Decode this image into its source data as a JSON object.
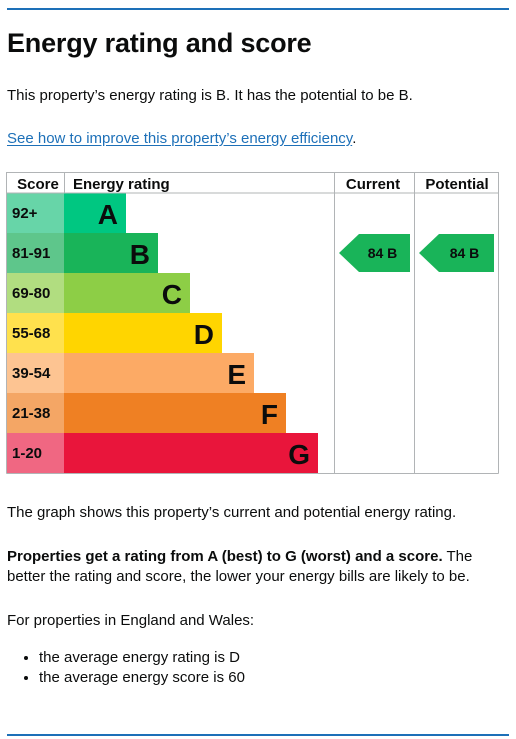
{
  "page": {
    "title": "Energy rating and score",
    "summary": "This property’s energy rating is B. It has the potential to be B.",
    "improve_link": "See how to improve this property’s energy efficiency",
    "improve_link_suffix": ".",
    "graph_caption": "The graph shows this property’s current and potential energy rating.",
    "rating_info_bold": "Properties get a rating from A (best) to G (worst) and a score.",
    "rating_info_rest": " The better the rating and score, the lower your energy bills are likely to be.",
    "region_intro": "For properties in England and Wales:",
    "averages": [
      "the average energy rating is D",
      "the average energy score is 60"
    ]
  },
  "chart_data": {
    "type": "bar",
    "headers": {
      "score": "Score",
      "rating": "Energy rating",
      "current": "Current",
      "potential": "Potential"
    },
    "bands": [
      {
        "score_range": "92+",
        "letter": "A",
        "color": "#00c781",
        "score_color": "#67d5a8"
      },
      {
        "score_range": "81-91",
        "letter": "B",
        "color": "#19b459",
        "score_color": "#5ec68b"
      },
      {
        "score_range": "69-80",
        "letter": "C",
        "color": "#8dce46",
        "score_color": "#b1dd80"
      },
      {
        "score_range": "55-68",
        "letter": "D",
        "color": "#ffd500",
        "score_color": "#ffe14d"
      },
      {
        "score_range": "39-54",
        "letter": "E",
        "color": "#fcaa65",
        "score_color": "#fdc492"
      },
      {
        "score_range": "21-38",
        "letter": "F",
        "color": "#ef8023",
        "score_color": "#f4a665"
      },
      {
        "score_range": "1-20",
        "letter": "G",
        "color": "#e9153b",
        "score_color": "#f06782"
      }
    ],
    "current": {
      "score": 84,
      "letter": "B",
      "label": "84  B",
      "color": "#19b459"
    },
    "potential": {
      "score": 84,
      "letter": "B",
      "label": "84  B",
      "color": "#19b459"
    }
  }
}
